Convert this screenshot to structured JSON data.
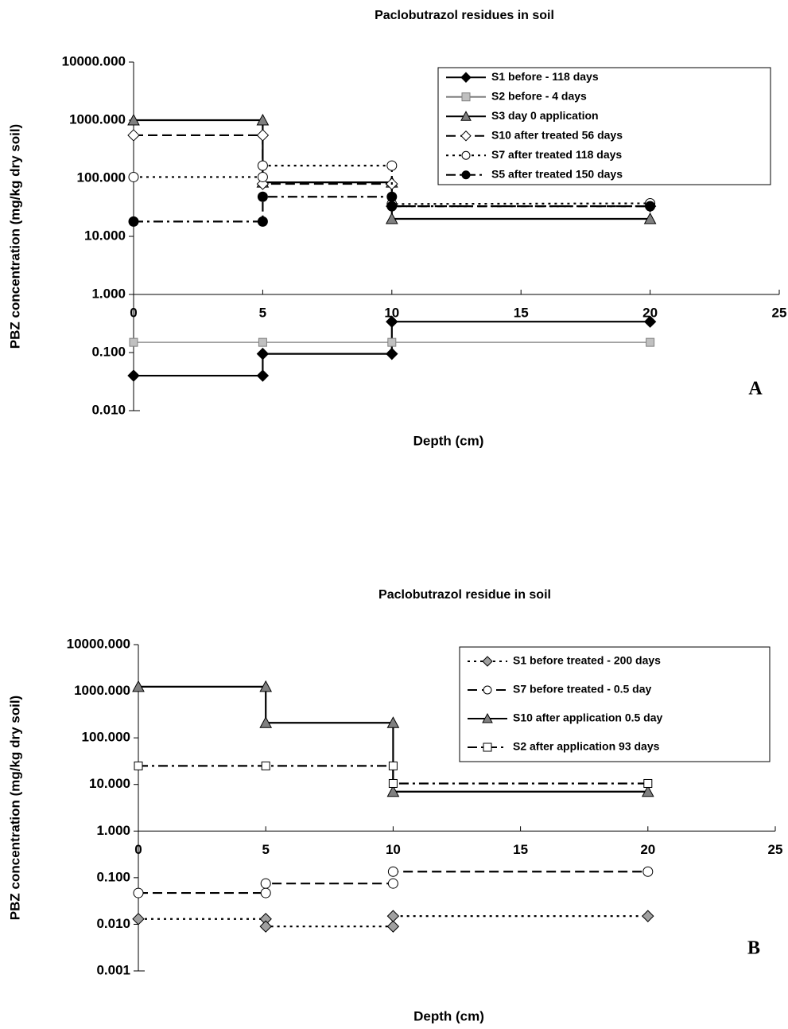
{
  "chart_data": [
    {
      "type": "line",
      "title": "Paclobutrazol residues in soil",
      "x_label": "Depth (cm)",
      "y_label": "PBZ concentration (mg/kg dry soil)",
      "panel_label": "A",
      "log_y": true,
      "x_axis_crosses": 1,
      "xlim": [
        0,
        25
      ],
      "xticks": [
        0,
        5,
        10,
        15,
        20,
        25
      ],
      "ylim": [
        0.01,
        10000
      ],
      "yticks": [
        {
          "value": 0.01,
          "label": "0.010"
        },
        {
          "value": 0.1,
          "label": "0.100"
        },
        {
          "value": 1,
          "label": "1.000"
        },
        {
          "value": 10,
          "label": "10.000"
        },
        {
          "value": 100,
          "label": "100.000"
        },
        {
          "value": 1000,
          "label": "1000.000"
        },
        {
          "value": 10000,
          "label": "10000.000"
        }
      ],
      "series": [
        {
          "name": "S1 before - 118 days",
          "color": "#000000",
          "marker": "diamond",
          "marker_fill": "#000000",
          "dash": "solid",
          "x": [
            0,
            5,
            5,
            10,
            10,
            20
          ],
          "values": [
            0.04,
            0.04,
            0.095,
            0.095,
            0.34,
            0.34
          ]
        },
        {
          "name": "S2 before - 4 days",
          "color": "#808080",
          "marker": "square",
          "marker_fill": "#c0c0c0",
          "dash": "solid",
          "x": [
            0,
            5,
            10,
            20
          ],
          "values": [
            0.15,
            0.15,
            0.15,
            0.15
          ]
        },
        {
          "name": "S3 day 0 application",
          "color": "#000000",
          "marker": "triangle",
          "marker_fill": "#808080",
          "dash": "solid",
          "x": [
            0,
            5,
            5,
            10,
            10,
            20
          ],
          "values": [
            1000,
            1000,
            85,
            85,
            20,
            20
          ]
        },
        {
          "name": "S10 after treated 56 days",
          "color": "#000000",
          "marker": "diamond",
          "marker_fill": "#ffffff",
          "dash": "long",
          "x": [
            0,
            5,
            5,
            10,
            10,
            20
          ],
          "values": [
            550,
            550,
            80,
            80,
            33,
            33
          ]
        },
        {
          "name": "S7 after treated 118 days",
          "color": "#000000",
          "marker": "circle",
          "marker_fill": "#ffffff",
          "dash": "dot",
          "x": [
            0,
            5,
            5,
            10,
            10,
            20
          ],
          "values": [
            105,
            105,
            165,
            165,
            36,
            37
          ]
        },
        {
          "name": "S5 after treated 150 days",
          "color": "#000000",
          "marker": "circle",
          "marker_fill": "#000000",
          "dash": "dashdot",
          "x": [
            0,
            5,
            5,
            10,
            10,
            20
          ],
          "values": [
            18,
            18,
            48,
            48,
            33,
            33
          ]
        }
      ]
    },
    {
      "type": "line",
      "title": "Paclobutrazol residue in soil",
      "x_label": "Depth (cm)",
      "y_label": "PBZ concentration (mg/kg dry soil)",
      "panel_label": "B",
      "log_y": true,
      "x_axis_crosses": 1,
      "xlim": [
        0,
        25
      ],
      "xticks": [
        0,
        5,
        10,
        15,
        20,
        25
      ],
      "ylim": [
        0.001,
        10000
      ],
      "yticks": [
        {
          "value": 0.001,
          "label": "0.001"
        },
        {
          "value": 0.01,
          "label": "0.010"
        },
        {
          "value": 0.1,
          "label": "0.100"
        },
        {
          "value": 1,
          "label": "1.000"
        },
        {
          "value": 10,
          "label": "10.000"
        },
        {
          "value": 100,
          "label": "100.000"
        },
        {
          "value": 1000,
          "label": "1000.000"
        },
        {
          "value": 10000,
          "label": "10000.000"
        }
      ],
      "series": [
        {
          "name": "S1 before treated - 200 days",
          "color": "#000000",
          "marker": "diamond",
          "marker_fill": "#a0a0a0",
          "dash": "dot",
          "x": [
            0,
            5,
            5,
            10,
            10,
            20
          ],
          "values": [
            0.013,
            0.013,
            0.009,
            0.009,
            0.015,
            0.015
          ]
        },
        {
          "name": "S7 before treated - 0.5 day",
          "color": "#000000",
          "marker": "circle",
          "marker_fill": "#ffffff",
          "dash": "long",
          "x": [
            0,
            5,
            5,
            10,
            10,
            20
          ],
          "values": [
            0.047,
            0.047,
            0.075,
            0.075,
            0.135,
            0.135
          ]
        },
        {
          "name": "S10 after application 0.5 day",
          "color": "#000000",
          "marker": "triangle",
          "marker_fill": "#808080",
          "dash": "solid",
          "x": [
            0,
            5,
            5,
            10,
            10,
            20
          ],
          "values": [
            1250,
            1250,
            210,
            210,
            7,
            7
          ]
        },
        {
          "name": "S2 after application 93 days",
          "color": "#000000",
          "marker": "square",
          "marker_fill": "#ffffff",
          "dash": "dashdot",
          "x": [
            0,
            5,
            10,
            10,
            20
          ],
          "values": [
            25,
            25,
            25,
            10.5,
            10.5
          ]
        }
      ]
    }
  ]
}
